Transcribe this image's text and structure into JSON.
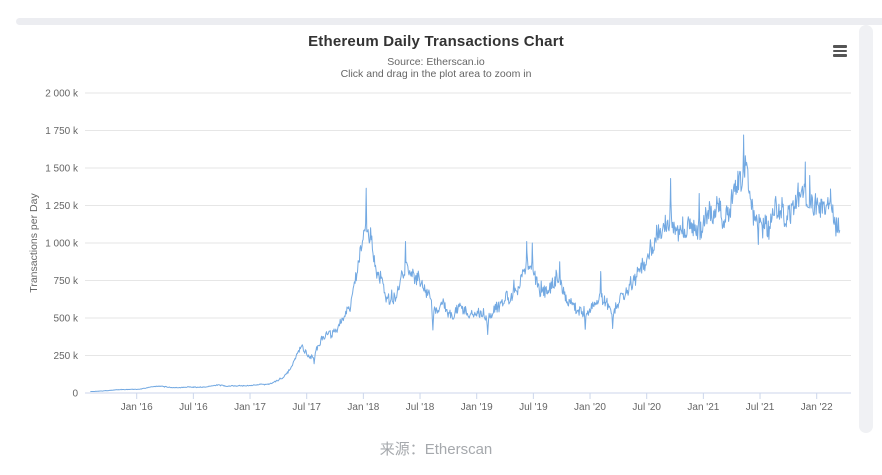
{
  "chart": {
    "title": "Ethereum Daily Transactions Chart",
    "subtitle_source": "Source: Etherscan.io",
    "subtitle_hint": "Click and drag in the plot area to zoom in",
    "y_axis_title": "Transactions per Day",
    "context_menu_icon": "hamburger-menu-icon"
  },
  "caption": "来源：Etherscan",
  "colors": {
    "series_line": "#73a9e2",
    "gridline": "#e6e6e6",
    "axis_line": "#ccd6eb",
    "axis_label_text": "#666666",
    "title_text": "#333333",
    "subtitle_text": "#666666",
    "caption_text": "#a6a9ad",
    "menu_icon": "#555555"
  },
  "chart_data": {
    "type": "line",
    "title": "Ethereum Daily Transactions Chart",
    "subtitle": [
      "Source: Etherscan.io",
      "Click and drag in the plot area to zoom in"
    ],
    "xlabel": "",
    "ylabel": "Transactions per Day",
    "y_unit": "thousand transactions per day",
    "ylim": [
      0,
      2000000
    ],
    "grid": "horizontal-only",
    "legend": "none",
    "x_range_days": [
      "2015-08-05",
      "2022-03-16"
    ],
    "y_ticks": [
      {
        "value": 0,
        "label": "0"
      },
      {
        "value": 250,
        "label": "250 k"
      },
      {
        "value": 500,
        "label": "500 k"
      },
      {
        "value": 750,
        "label": "750 k"
      },
      {
        "value": 1000,
        "label": "1 000 k"
      },
      {
        "value": 1250,
        "label": "1 250 k"
      },
      {
        "value": 1500,
        "label": "1 500 k"
      },
      {
        "value": 1750,
        "label": "1 750 k"
      },
      {
        "value": 2000,
        "label": "2 000 k"
      }
    ],
    "x_ticks": [
      {
        "date": "2016-01",
        "label": "Jan '16"
      },
      {
        "date": "2016-07",
        "label": "Jul '16"
      },
      {
        "date": "2017-01",
        "label": "Jan '17"
      },
      {
        "date": "2017-07",
        "label": "Jul '17"
      },
      {
        "date": "2018-01",
        "label": "Jan '18"
      },
      {
        "date": "2018-07",
        "label": "Jul '18"
      },
      {
        "date": "2019-01",
        "label": "Jan '19"
      },
      {
        "date": "2019-07",
        "label": "Jul '19"
      },
      {
        "date": "2020-01",
        "label": "Jan '20"
      },
      {
        "date": "2020-07",
        "label": "Jul '20"
      },
      {
        "date": "2021-01",
        "label": "Jan '21"
      },
      {
        "date": "2021-07",
        "label": "Jul '21"
      },
      {
        "date": "2022-01",
        "label": "Jan '22"
      }
    ],
    "series": [
      {
        "name": "Transactions per Day",
        "unit": "k tx/day",
        "monthly_avg": [
          [
            "2015-08",
            10
          ],
          [
            "2015-09",
            15
          ],
          [
            "2015-10",
            20
          ],
          [
            "2015-11",
            23
          ],
          [
            "2015-12",
            24
          ],
          [
            "2016-01",
            26
          ],
          [
            "2016-02",
            40
          ],
          [
            "2016-03",
            44
          ],
          [
            "2016-04",
            38
          ],
          [
            "2016-05",
            36
          ],
          [
            "2016-06",
            42
          ],
          [
            "2016-07",
            38
          ],
          [
            "2016-08",
            42
          ],
          [
            "2016-09",
            52
          ],
          [
            "2016-10",
            48
          ],
          [
            "2016-11",
            46
          ],
          [
            "2016-12",
            48
          ],
          [
            "2017-01",
            52
          ],
          [
            "2017-02",
            56
          ],
          [
            "2017-03",
            70
          ],
          [
            "2017-04",
            100
          ],
          [
            "2017-05",
            180
          ],
          [
            "2017-06",
            300
          ],
          [
            "2017-07",
            235
          ],
          [
            "2017-08",
            320
          ],
          [
            "2017-09",
            405
          ],
          [
            "2017-10",
            460
          ],
          [
            "2017-11",
            540
          ],
          [
            "2017-12",
            850
          ],
          [
            "2018-01",
            1120
          ],
          [
            "2018-02",
            790
          ],
          [
            "2018-03",
            650
          ],
          [
            "2018-04",
            710
          ],
          [
            "2018-05",
            840
          ],
          [
            "2018-06",
            790
          ],
          [
            "2018-07",
            710
          ],
          [
            "2018-08",
            590
          ],
          [
            "2018-09",
            555
          ],
          [
            "2018-10",
            535
          ],
          [
            "2018-11",
            555
          ],
          [
            "2018-12",
            505
          ],
          [
            "2019-01",
            530
          ],
          [
            "2019-02",
            520
          ],
          [
            "2019-03",
            590
          ],
          [
            "2019-04",
            660
          ],
          [
            "2019-05",
            760
          ],
          [
            "2019-06",
            900
          ],
          [
            "2019-07",
            760
          ],
          [
            "2019-08",
            690
          ],
          [
            "2019-09",
            800
          ],
          [
            "2019-10",
            640
          ],
          [
            "2019-11",
            580
          ],
          [
            "2019-12",
            540
          ],
          [
            "2020-01",
            560
          ],
          [
            "2020-02",
            630
          ],
          [
            "2020-03",
            520
          ],
          [
            "2020-04",
            650
          ],
          [
            "2020-05",
            760
          ],
          [
            "2020-06",
            880
          ],
          [
            "2020-07",
            970
          ],
          [
            "2020-08",
            1080
          ],
          [
            "2020-09",
            1140
          ],
          [
            "2020-10",
            1050
          ],
          [
            "2020-11",
            1100
          ],
          [
            "2020-12",
            1120
          ],
          [
            "2021-01",
            1180
          ],
          [
            "2021-02",
            1240
          ],
          [
            "2021-03",
            1190
          ],
          [
            "2021-04",
            1330
          ],
          [
            "2021-05",
            1500
          ],
          [
            "2021-06",
            1130
          ],
          [
            "2021-07",
            1100
          ],
          [
            "2021-08",
            1210
          ],
          [
            "2021-09",
            1180
          ],
          [
            "2021-10",
            1200
          ],
          [
            "2021-11",
            1330
          ],
          [
            "2021-12",
            1270
          ],
          [
            "2022-01",
            1240
          ],
          [
            "2022-02",
            1240
          ],
          [
            "2022-03",
            1120
          ]
        ],
        "notable_extremes": [
          {
            "date": "2018-01-10",
            "value": 1365,
            "type": "spike"
          },
          {
            "date": "2018-05-15",
            "value": 1010,
            "type": "spike"
          },
          {
            "date": "2019-06-10",
            "value": 1010,
            "type": "spike"
          },
          {
            "date": "2019-06-28",
            "value": 1000,
            "type": "spike"
          },
          {
            "date": "2019-09-25",
            "value": 875,
            "type": "spike"
          },
          {
            "date": "2020-02-05",
            "value": 810,
            "type": "spike"
          },
          {
            "date": "2020-09-17",
            "value": 1430,
            "type": "spike"
          },
          {
            "date": "2020-12-18",
            "value": 1330,
            "type": "spike"
          },
          {
            "date": "2021-05-09",
            "value": 1720,
            "type": "spike"
          },
          {
            "date": "2021-11-25",
            "value": 1540,
            "type": "spike"
          },
          {
            "date": "2021-12-09",
            "value": 1450,
            "type": "spike"
          },
          {
            "date": "2022-02-15",
            "value": 1360,
            "type": "spike"
          },
          {
            "date": "2017-07-25",
            "value": 195,
            "type": "dip"
          },
          {
            "date": "2018-08-12",
            "value": 420,
            "type": "dip"
          },
          {
            "date": "2019-02-06",
            "value": 390,
            "type": "dip"
          },
          {
            "date": "2019-12-16",
            "value": 425,
            "type": "dip"
          },
          {
            "date": "2020-03-13",
            "value": 430,
            "type": "dip"
          },
          {
            "date": "2021-06-26",
            "value": 990,
            "type": "dip"
          }
        ]
      }
    ]
  }
}
